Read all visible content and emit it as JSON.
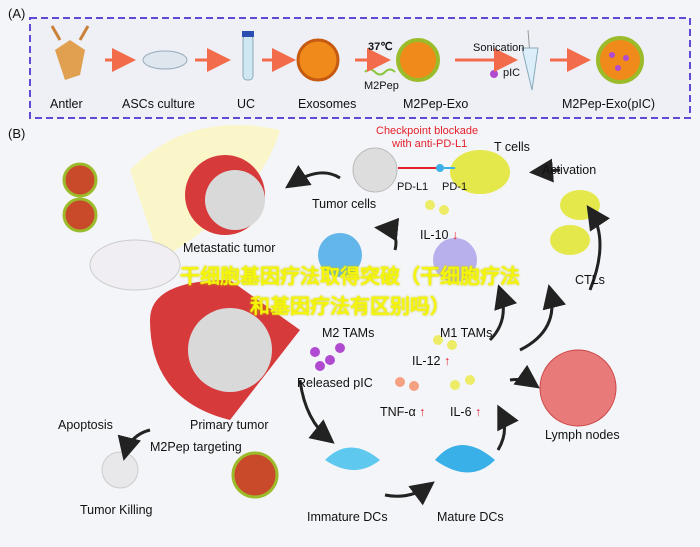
{
  "panel_a": {
    "label": "(A)",
    "steps": [
      "Antler",
      "ASCs culture",
      "UC",
      "Exosomes",
      "M2Pep-Exo",
      "M2Pep-Exo(pIC)"
    ],
    "temp": "37℃",
    "peptide": "M2Pep",
    "sonication": "Sonication",
    "pic": "pIC"
  },
  "panel_b": {
    "label": "(B)",
    "checkpoint": "Checkpoint blockade",
    "checkpoint2": "with anti-PD-L1",
    "t_cells": "T cells",
    "pd_l1": "PD-L1",
    "pd_1": "PD-1",
    "tumor_cells": "Tumor cells",
    "activation": "Activation",
    "metastatic": "Metastatic tumor",
    "il10": "IL-10",
    "m2": "M2 TAMs",
    "m1": "M1 TAMs",
    "ctls": "CTLs",
    "released": "Released pIC",
    "il12": "IL-12",
    "tnf": "TNF-α",
    "il6": "IL-6",
    "primary": "Primary tumor",
    "apoptosis": "Apoptosis",
    "targeting": "M2Pep targeting",
    "lymph": "Lymph nodes",
    "killing": "Tumor Killing",
    "immature": "Immature DCs",
    "mature": "Mature DCs",
    "up": "↑",
    "down": "↓"
  },
  "overlay_text": "干细胞基因疗法取得突破（干细胞疗法和基因疗法有区别吗）",
  "colors": {
    "dash_border": "#5b4bd6",
    "arrow": "#f26b4b",
    "red_text": "#e4202a",
    "overlay": "#f5f50a"
  }
}
